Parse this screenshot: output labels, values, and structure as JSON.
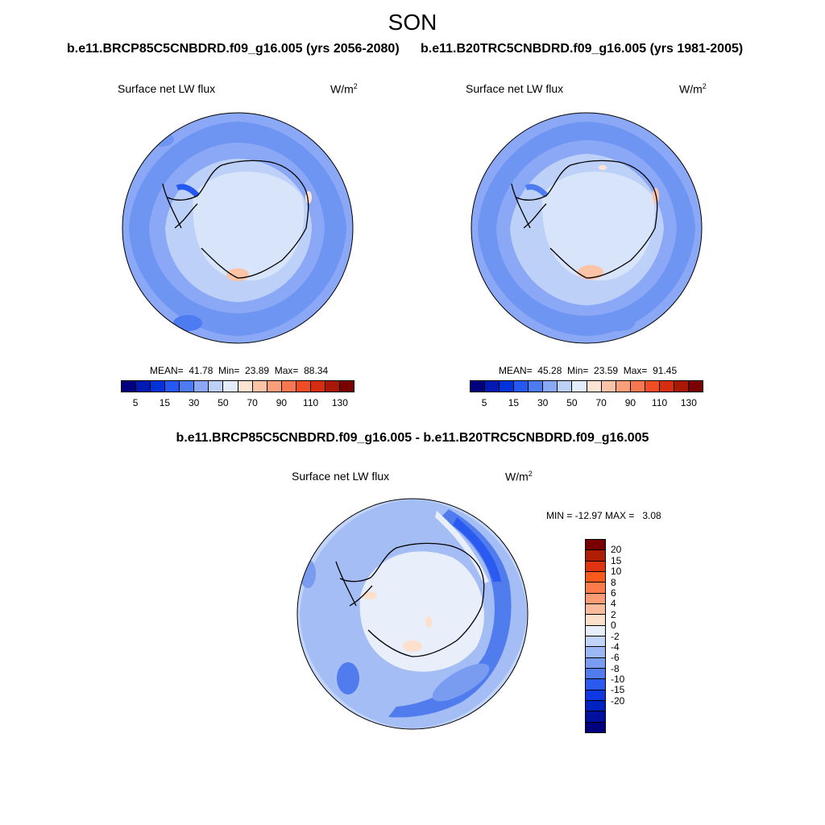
{
  "title": "SON",
  "panels": {
    "left": {
      "case_title": "b.e11.BRCP85C5CNBDRD.f09_g16.005 (yrs 2056-2080)",
      "variable": "Surface net LW flux",
      "unit": "W/m",
      "unit_exp": "2",
      "stats": "MEAN=  41.78  Min=  23.89  Max=  88.34"
    },
    "right": {
      "case_title": "b.e11.B20TRC5CNBDRD.f09_g16.005 (yrs 1981-2005)",
      "variable": "Surface net LW flux",
      "unit": "W/m",
      "unit_exp": "2",
      "stats": "MEAN=  45.28  Min=  23.59  Max=  91.45"
    },
    "diff": {
      "case_title": "b.e11.BRCP85C5CNBDRD.f09_g16.005 - b.e11.B20TRC5CNBDRD.f09_g16.005",
      "variable": "Surface net LW flux",
      "unit": "W/m",
      "unit_exp": "2",
      "stats": "MIN = -12.97 MAX =   3.08"
    }
  },
  "colorbar_abs": {
    "colors": [
      "#00007f",
      "#0019b2",
      "#0032d9",
      "#2458f0",
      "#4d7cf2",
      "#8aa8f5",
      "#bdd0f7",
      "#e3ecfa",
      "#fde3d4",
      "#fcc3a6",
      "#fb9f7b",
      "#f77850",
      "#ef4d26",
      "#d62c10",
      "#a81804",
      "#7a0000"
    ],
    "labels": [
      "5",
      "15",
      "30",
      "50",
      "70",
      "90",
      "110",
      "130"
    ]
  },
  "colorbar_diff": {
    "colors": [
      "#7a0000",
      "#b01c04",
      "#e03410",
      "#fb5a1c",
      "#fb7c48",
      "#fb9c74",
      "#fbbc9e",
      "#fde0cc",
      "#e8eefa",
      "#c2d4f8",
      "#9cb8f4",
      "#7a9cf0",
      "#507cee",
      "#2a5af0",
      "#0e38e4",
      "#0022c0",
      "#00109e",
      "#00007f"
    ],
    "labels": [
      "20",
      "15",
      "10",
      "8",
      "6",
      "4",
      "2",
      "0",
      "-2",
      "-4",
      "-6",
      "-8",
      "-10",
      "-15",
      "-20"
    ]
  }
}
